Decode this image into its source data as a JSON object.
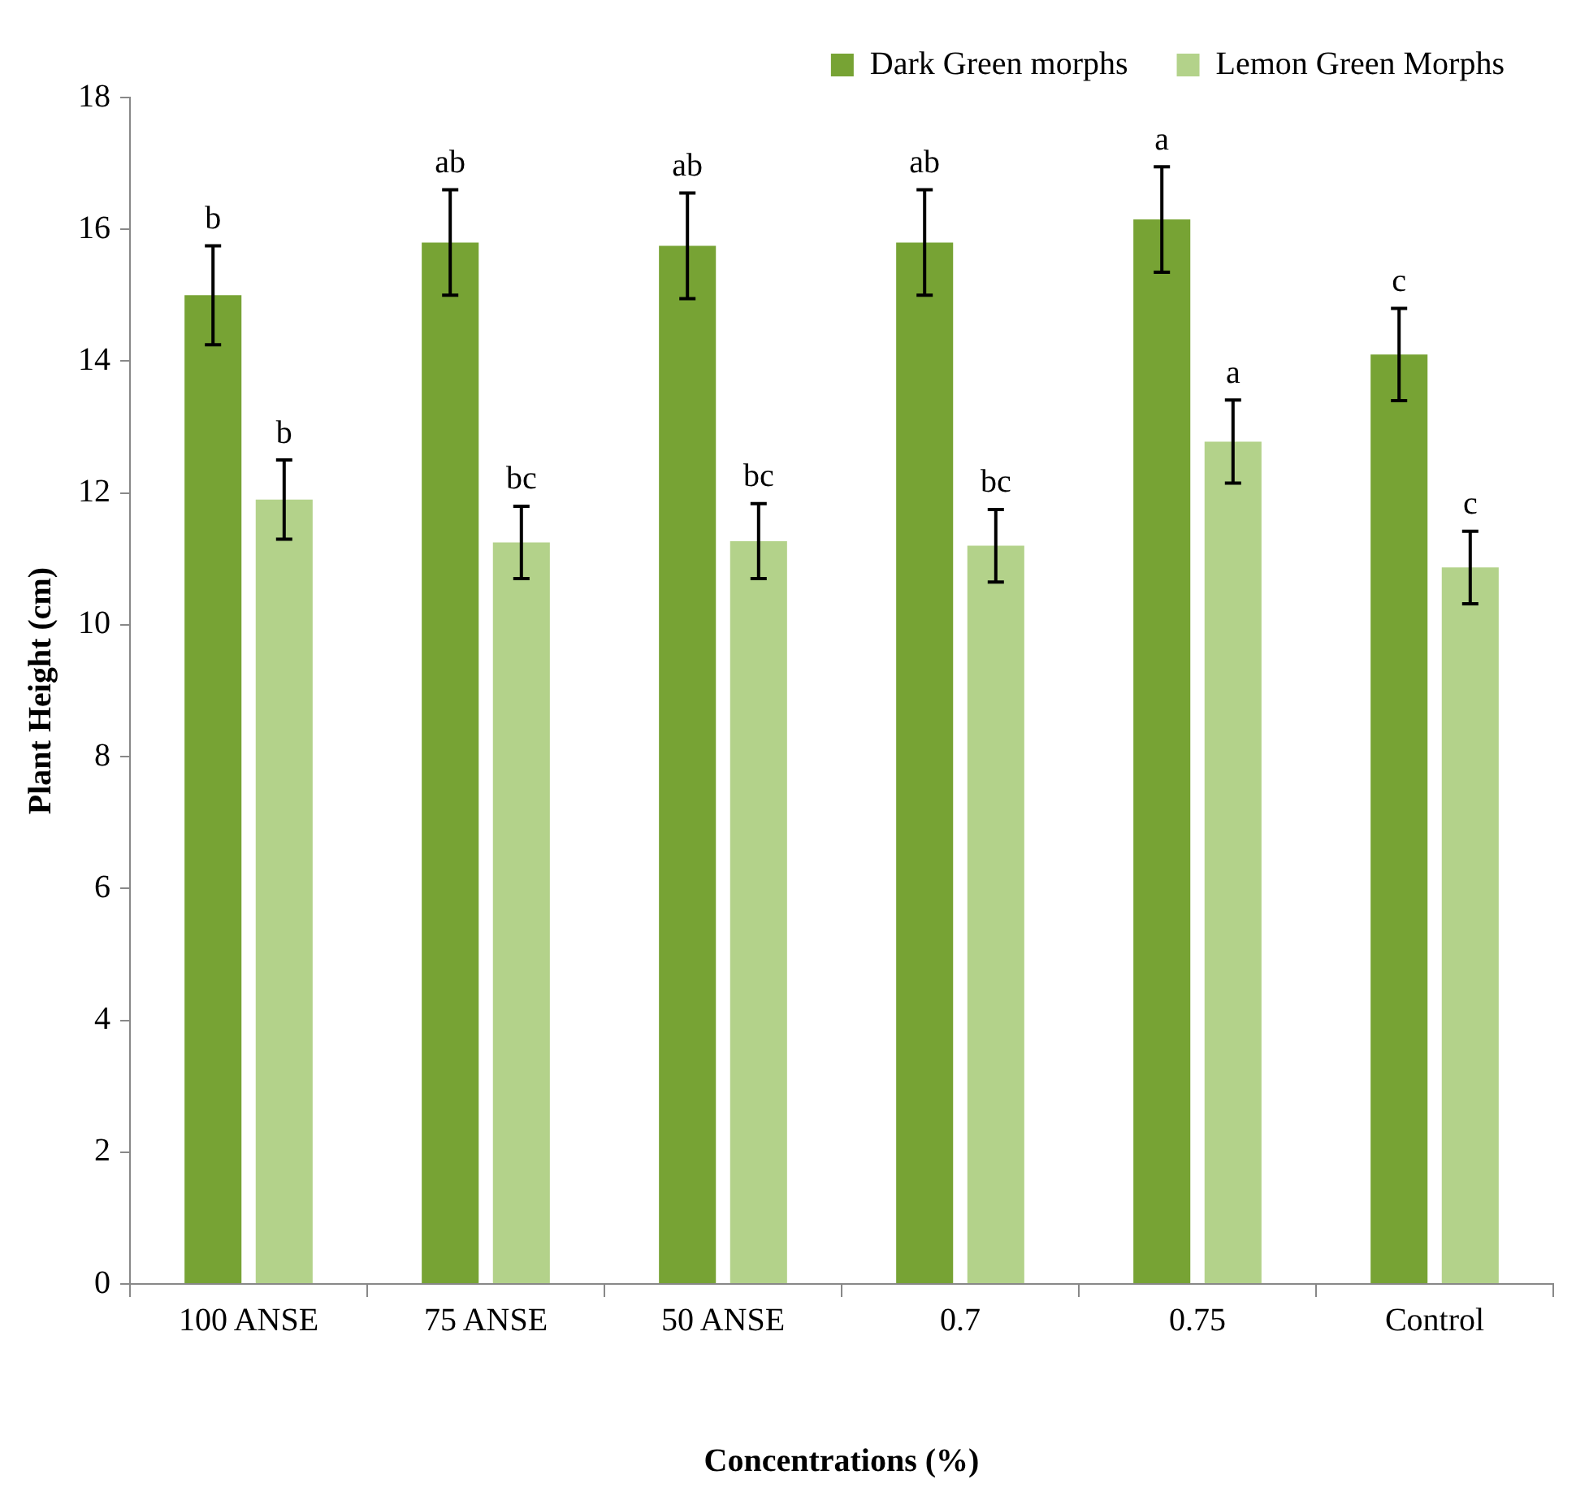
{
  "chart_data": {
    "type": "bar",
    "xlabel": "Concentrations (%)",
    "ylabel": "Plant Height (cm)",
    "categories": [
      "100 ANSE",
      "75 ANSE",
      "50 ANSE",
      "0.7",
      "0.75",
      "Control"
    ],
    "series": [
      {
        "name": "Dark Green morphs",
        "color": "#77a334",
        "values": [
          15.0,
          15.8,
          15.75,
          15.8,
          16.15,
          14.1
        ],
        "errors": [
          0.75,
          0.8,
          0.8,
          0.8,
          0.8,
          0.7
        ],
        "value_labels": [
          "b",
          "ab",
          "ab",
          "ab",
          "a",
          "c"
        ]
      },
      {
        "name": "Lemon Green Morphs",
        "color": "#b3d28a",
        "values": [
          11.9,
          11.25,
          11.27,
          11.2,
          12.78,
          10.87
        ],
        "errors": [
          0.6,
          0.55,
          0.57,
          0.55,
          0.63,
          0.55
        ],
        "value_labels": [
          "b",
          "bc",
          "bc",
          "bc",
          "a",
          "c"
        ]
      }
    ],
    "ylim": [
      0,
      18
    ],
    "yticks": [
      0,
      2,
      4,
      6,
      8,
      10,
      12,
      14,
      16,
      18
    ],
    "grid": false,
    "legend": "top right"
  }
}
